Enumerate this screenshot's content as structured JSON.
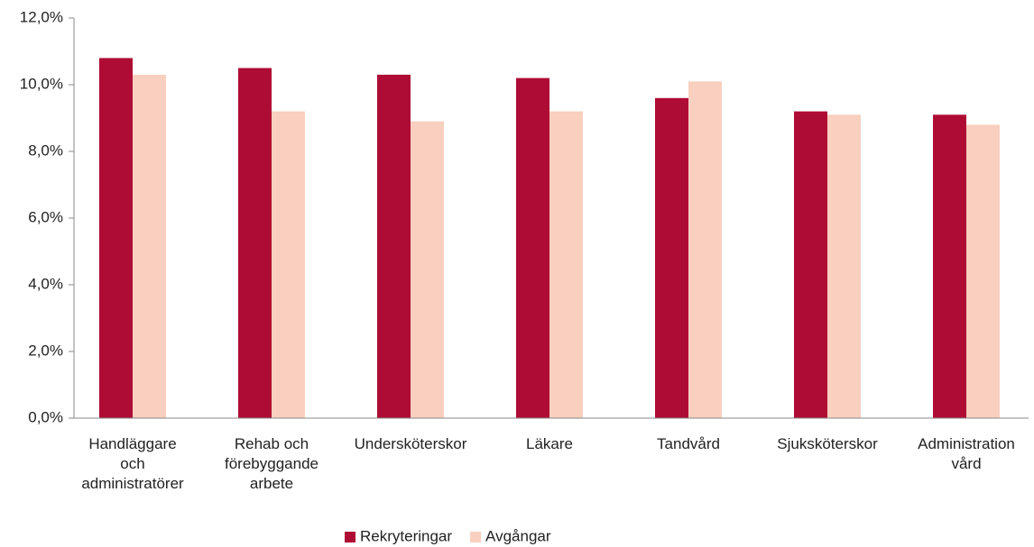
{
  "chart_data": {
    "type": "bar",
    "categories": [
      "Handläggare\noch\nadministratörer",
      "Rehab och\nförebyggande\narbete",
      "Undersköterskor",
      "Läkare",
      "Tandvård",
      "Sjuksköterskor",
      "Administration\nvård"
    ],
    "series": [
      {
        "name": "Rekryteringar",
        "color": "#ae0b35",
        "values": [
          10.8,
          10.5,
          10.3,
          10.2,
          9.6,
          9.2,
          9.1
        ]
      },
      {
        "name": "Avgångar",
        "color": "#f9cfbf",
        "values": [
          10.3,
          9.2,
          8.9,
          9.2,
          10.1,
          9.1,
          8.8
        ]
      }
    ],
    "ylim": [
      0,
      12
    ],
    "yticks": [
      {
        "value": 0,
        "label": "0,0%"
      },
      {
        "value": 2,
        "label": "2,0%"
      },
      {
        "value": 4,
        "label": "4,0%"
      },
      {
        "value": 6,
        "label": "6,0%"
      },
      {
        "value": 8,
        "label": "8,0%"
      },
      {
        "value": 10,
        "label": "10,0%"
      },
      {
        "value": 12,
        "label": "12,0%"
      }
    ],
    "legend": "bottom"
  }
}
